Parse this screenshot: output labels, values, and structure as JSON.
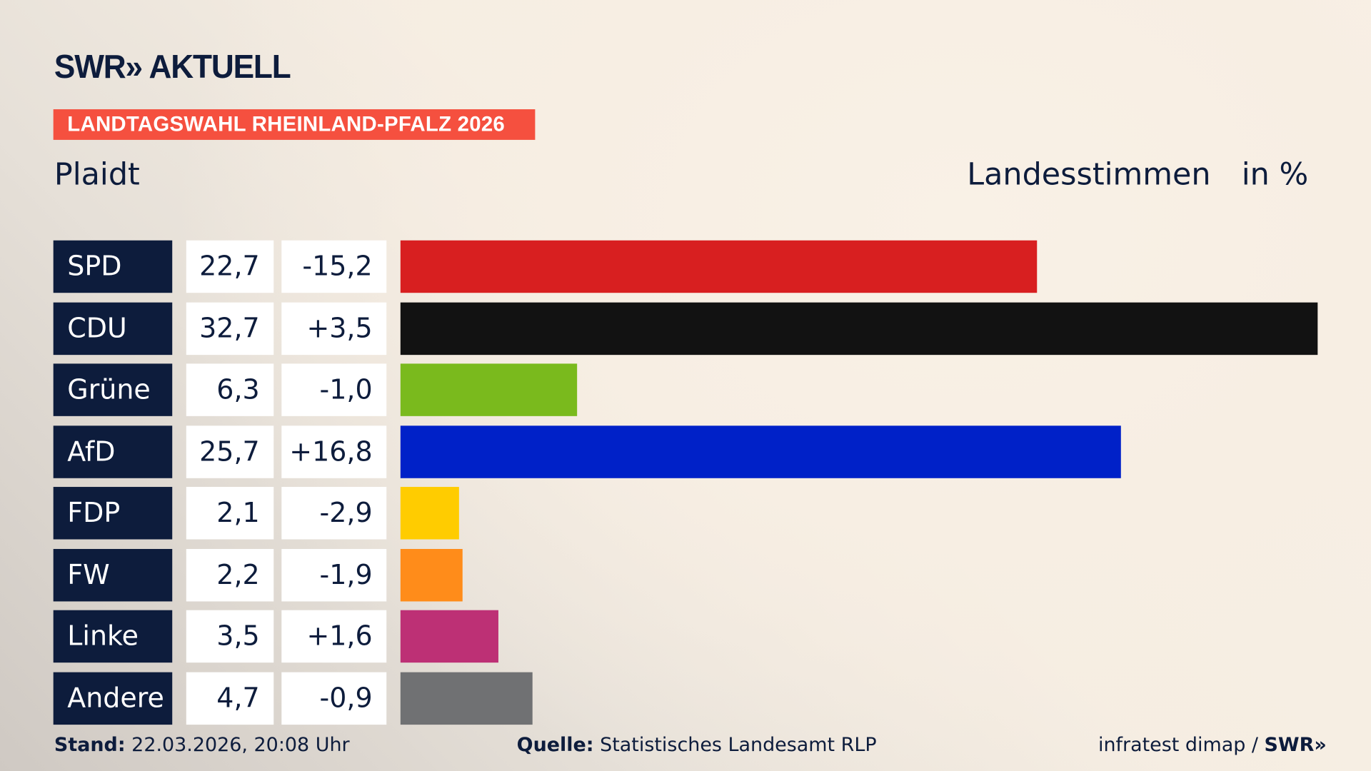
{
  "logo": "SWR» AKTUELL",
  "badge": "LANDTAGSWAHL RHEINLAND-PFALZ 2026",
  "place": "Plaidt",
  "metric": "Landesstimmen",
  "unit": "in %",
  "colors": {
    "badge": "#f5503f",
    "navy": "#0d1c3c"
  },
  "chart_data": {
    "type": "bar",
    "orientation": "horizontal",
    "categories": [
      "SPD",
      "CDU",
      "Grüne",
      "AfD",
      "FDP",
      "FW",
      "Linke",
      "Andere"
    ],
    "values": [
      22.7,
      32.7,
      6.3,
      25.7,
      2.1,
      2.2,
      3.5,
      4.7
    ],
    "value_labels": [
      "22,7",
      "32,7",
      "6,3",
      "25,7",
      "2,1",
      "2,2",
      "3,5",
      "4,7"
    ],
    "diff_labels": [
      "-15,2",
      "+3,5",
      "-1,0",
      "+16,8",
      "-2,9",
      "-1,9",
      "+1,6",
      "-0,9"
    ],
    "colors": [
      "#d81f20",
      "#121212",
      "#7aba1d",
      "#0021c8",
      "#ffcc00",
      "#ff8c1a",
      "#bd3075",
      "#707173"
    ]
  },
  "footer": {
    "stand_label": "Stand:",
    "stand_value": " 22.03.2026, 20:08 Uhr",
    "source_label": "Quelle:",
    "source_value": " Statistisches Landesamt RLP",
    "credit": "infratest dimap / ",
    "credit_logo": "SWR»"
  }
}
